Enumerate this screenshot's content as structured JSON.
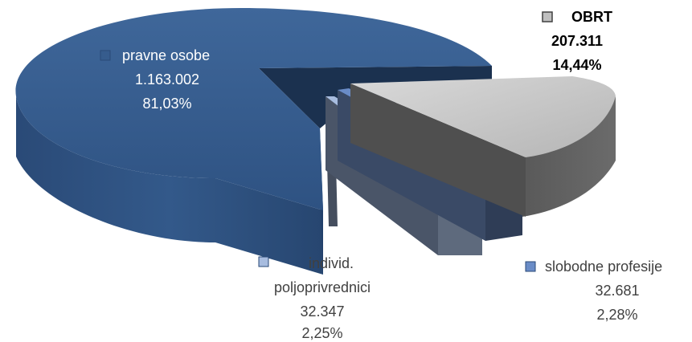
{
  "chart_data": {
    "type": "pie",
    "style": "3d-exploded",
    "slices": [
      {
        "name": "pravne osobe",
        "value": 1163002,
        "value_label": "1.163.002",
        "percent": 81.03,
        "percent_label": "81,03%",
        "color": "#3B6192"
      },
      {
        "name": "OBRT",
        "value": 207311,
        "value_label": "207.311",
        "percent": 14.44,
        "percent_label": "14,44%",
        "color": "#BFBFBF"
      },
      {
        "name": "slobodne profesije",
        "value": 32681,
        "value_label": "32.681",
        "percent": 2.28,
        "percent_label": "2,28%",
        "color": "#6A8CC7"
      },
      {
        "name": "individ. poljoprivrednici",
        "name_lines": [
          "individ.",
          "poljoprivrednici"
        ],
        "value": 32347,
        "value_label": "32.347",
        "percent": 2.25,
        "percent_label": "2,25%",
        "color": "#A7BCDF"
      }
    ]
  }
}
